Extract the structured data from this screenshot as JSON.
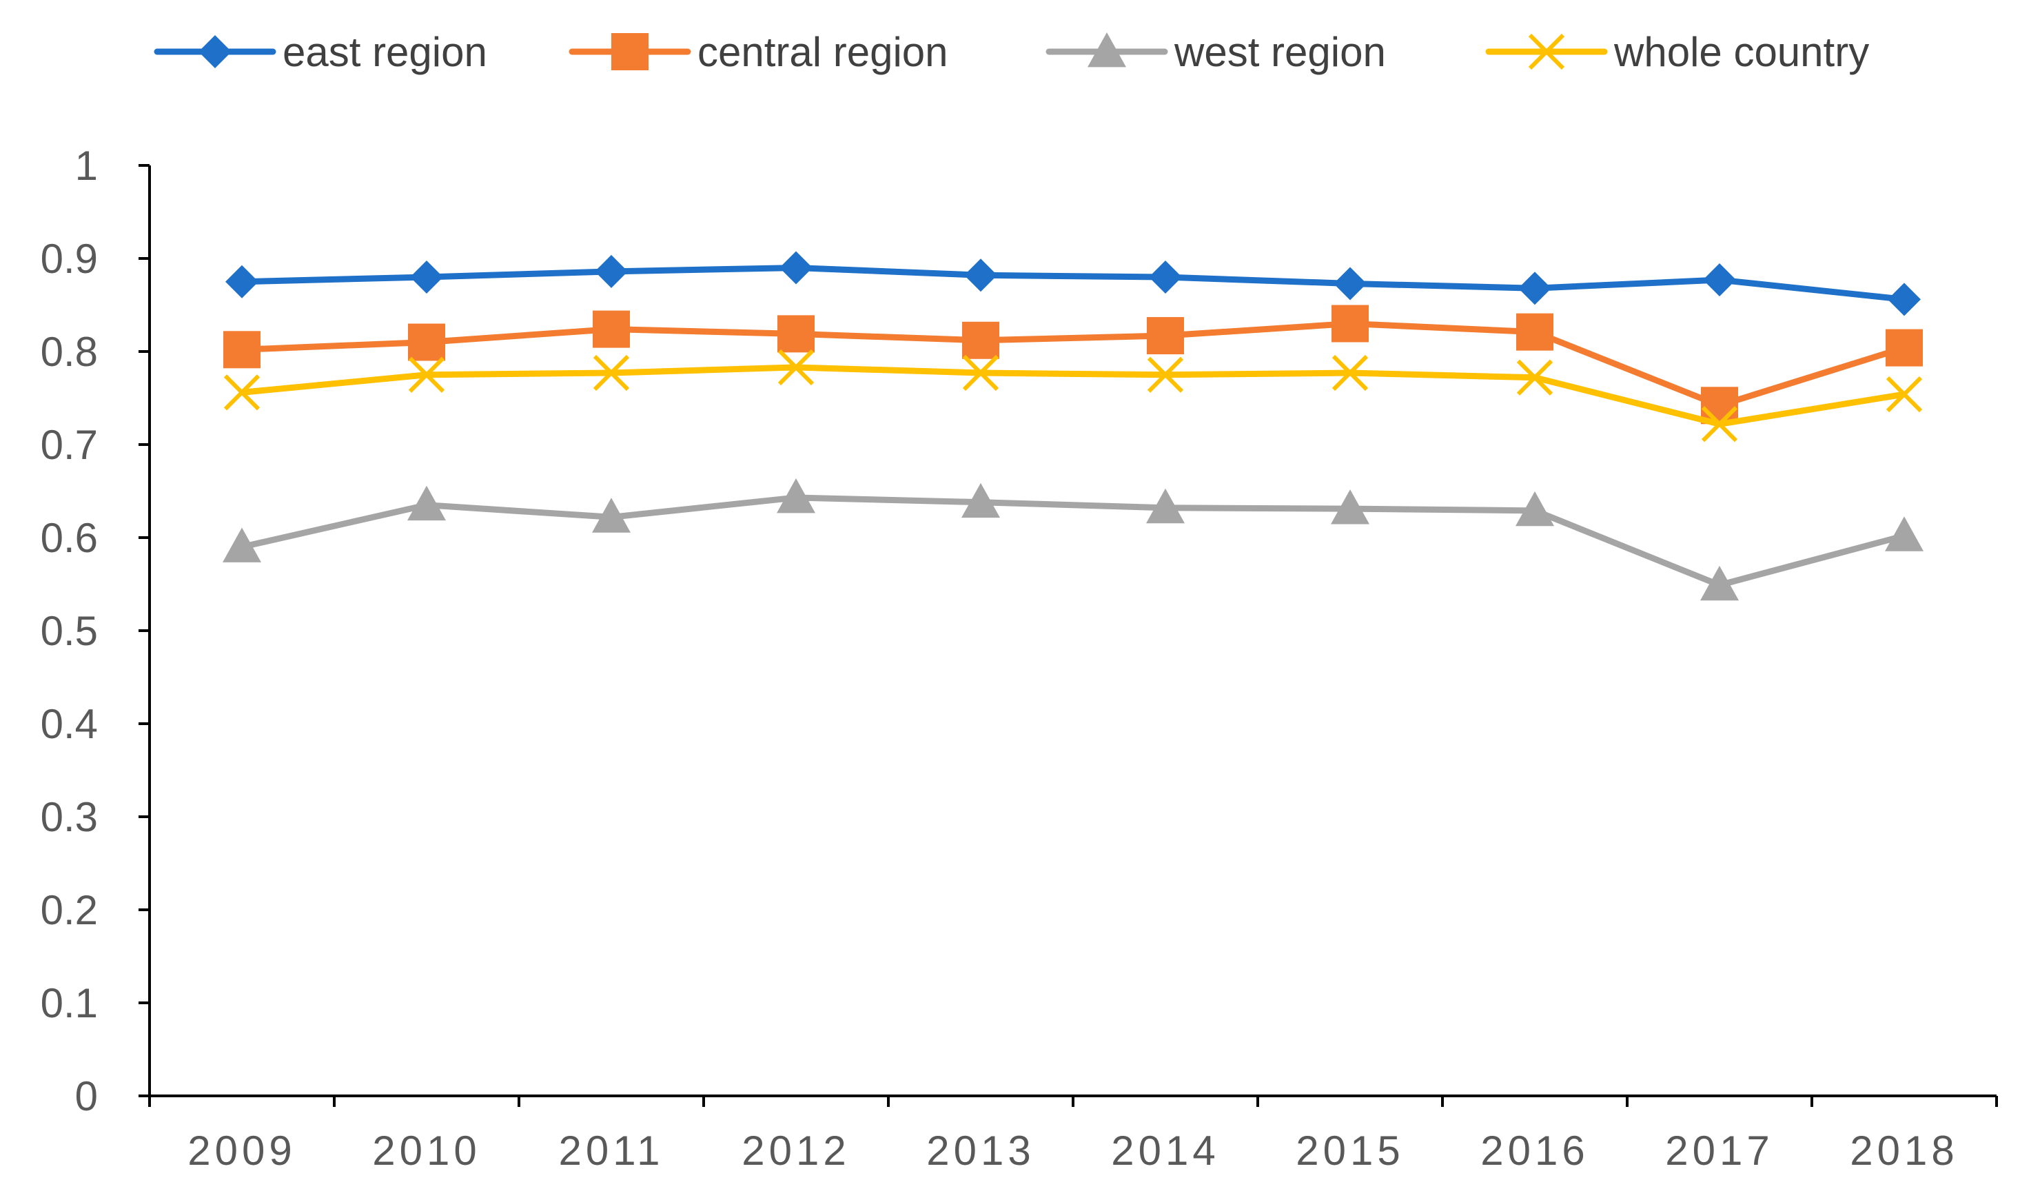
{
  "chart_data": {
    "type": "line",
    "title": "",
    "xlabel": "",
    "ylabel": "",
    "categories": [
      "2009",
      "2010",
      "2011",
      "2012",
      "2013",
      "2014",
      "2015",
      "2016",
      "2017",
      "2018"
    ],
    "ylim": [
      0,
      1
    ],
    "yticks": [
      "0",
      "0.1",
      "0.2",
      "0.3",
      "0.4",
      "0.5",
      "0.6",
      "0.7",
      "0.8",
      "0.9",
      "1"
    ],
    "grid": false,
    "legend_position": "top",
    "series": [
      {
        "name": "east region",
        "color": "#1F70C8",
        "marker": "diamond",
        "values": [
          0.875,
          0.88,
          0.886,
          0.89,
          0.882,
          0.88,
          0.873,
          0.868,
          0.877,
          0.856
        ]
      },
      {
        "name": "central region",
        "color": "#F47C30",
        "marker": "square",
        "values": [
          0.802,
          0.81,
          0.824,
          0.819,
          0.812,
          0.817,
          0.83,
          0.821,
          0.742,
          0.804
        ]
      },
      {
        "name": "west region",
        "color": "#A5A5A5",
        "marker": "triangle",
        "values": [
          0.59,
          0.635,
          0.622,
          0.643,
          0.638,
          0.632,
          0.631,
          0.629,
          0.549,
          0.602
        ]
      },
      {
        "name": "whole country",
        "color": "#FFC000",
        "marker": "x",
        "values": [
          0.756,
          0.775,
          0.777,
          0.783,
          0.777,
          0.775,
          0.777,
          0.772,
          0.722,
          0.754
        ]
      }
    ]
  }
}
